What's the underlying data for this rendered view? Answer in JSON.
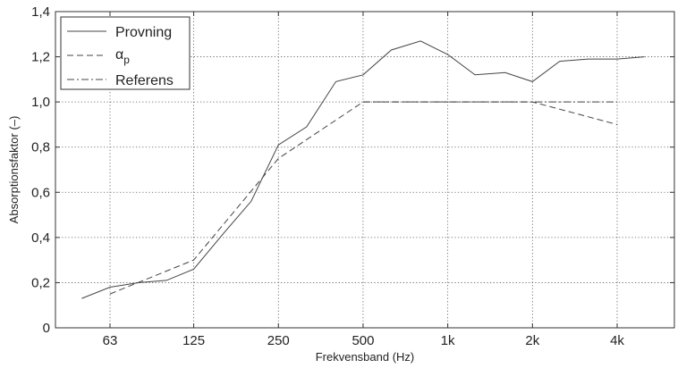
{
  "chart_data": {
    "type": "line",
    "title": "",
    "xlabel": "Frekvensband (Hz)",
    "ylabel": "Absorptionsfaktor (–)",
    "ylim": [
      0,
      1.4
    ],
    "x_scale": "log",
    "x_tick_labels": [
      "63",
      "125",
      "250",
      "500",
      "1k",
      "2k",
      "4k"
    ],
    "y_tick_labels": [
      "0",
      "0,2",
      "0,4",
      "0,6",
      "0,8",
      "1,0",
      "1,2",
      "1,4"
    ],
    "grid": true,
    "legend_position": "top-left",
    "series": [
      {
        "name": "Provning",
        "dash": "solid",
        "x": [
          50,
          63,
          80,
          100,
          125,
          160,
          200,
          250,
          315,
          400,
          500,
          630,
          800,
          1000,
          1250,
          1600,
          2000,
          2500,
          3150,
          4000,
          5000
        ],
        "y": [
          0.13,
          0.18,
          0.2,
          0.21,
          0.26,
          0.42,
          0.56,
          0.81,
          0.89,
          1.09,
          1.12,
          1.23,
          1.27,
          1.21,
          1.12,
          1.13,
          1.09,
          1.18,
          1.19,
          1.19,
          1.2
        ]
      },
      {
        "name": "α",
        "name_subscript": "p",
        "dash": "dashed",
        "x": [
          63,
          125,
          250,
          500,
          1000,
          2000,
          4000
        ],
        "y": [
          0.15,
          0.3,
          0.75,
          1.0,
          1.0,
          1.0,
          0.9
        ]
      },
      {
        "name": "Referens",
        "dash": "dashdot",
        "x": [
          500,
          1000,
          2000,
          4000
        ],
        "y": [
          1.0,
          1.0,
          1.0,
          1.0
        ]
      }
    ]
  }
}
